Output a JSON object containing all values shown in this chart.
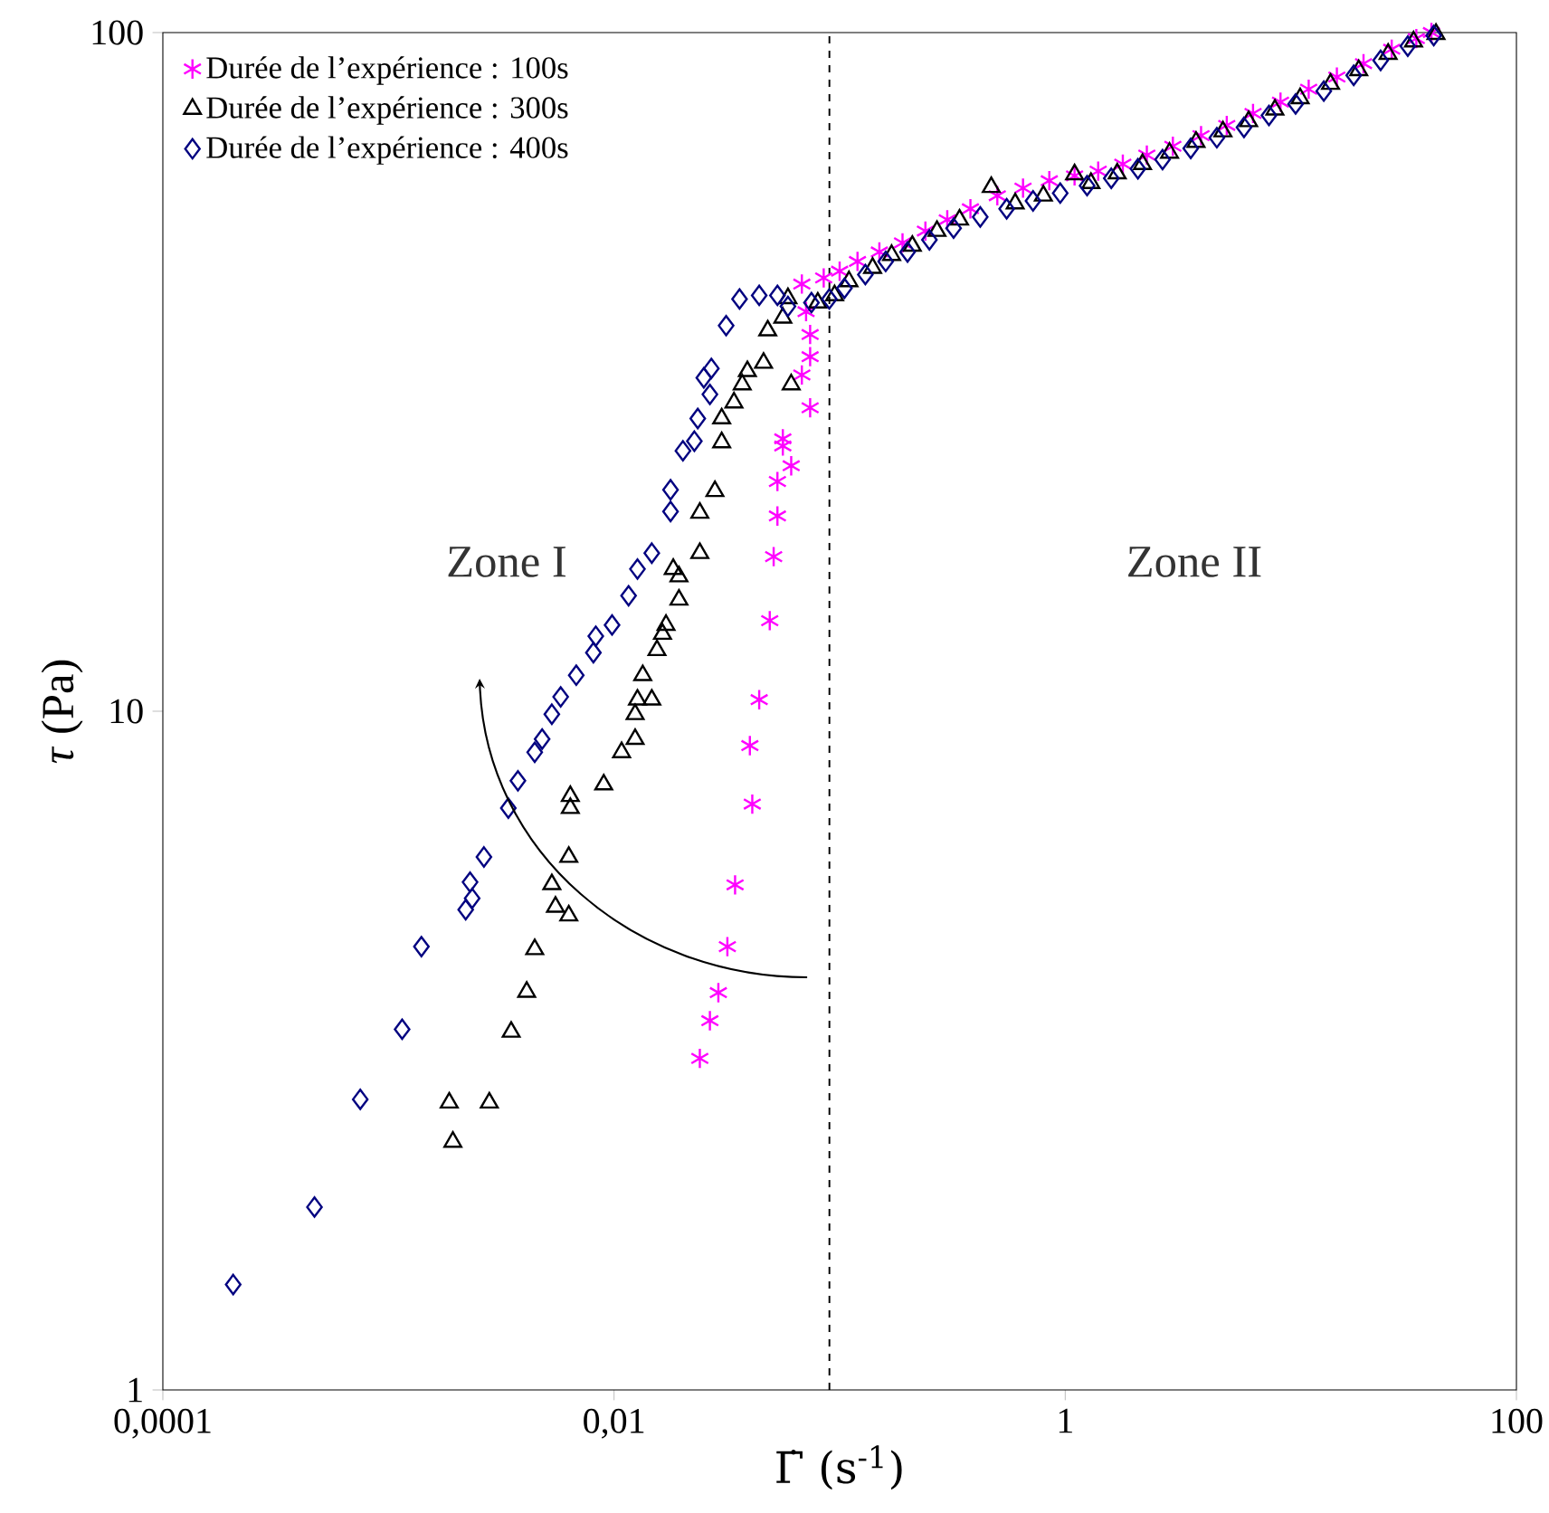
{
  "chart_data": {
    "type": "scatter",
    "xlabel": "Γ̇ (s$^{-1}$)",
    "ylabel": "*τ* (Pa)",
    "log": "xy",
    "xlim": [
      0.0001,
      100
    ],
    "ylim": [
      1,
      100
    ],
    "xticks": [
      {
        "value": 0.0001,
        "label": "0,0001"
      },
      {
        "value": 0.01,
        "label": "0,01"
      },
      1,
      100
    ],
    "yticks": [
      1,
      10,
      100
    ],
    "legend": "top left",
    "grid": false,
    "ref_lines": [
      {
        "axis": "x",
        "value": 0.09,
        "label": null,
        "color": "#000000",
        "line_style": "dashed"
      }
    ],
    "annotations": [
      "Zone I",
      "Zone II"
    ],
    "series": [
      {
        "name": "Durée de l’expérience : 100s",
        "color": "#ff00ff",
        "marker": "cross",
        "x": [
          0.024,
          0.0266,
          0.029,
          0.0318,
          0.0344,
          0.041,
          0.04,
          0.044,
          0.049,
          0.051,
          0.053,
          0.053,
          0.061,
          0.056,
          0.056,
          0.074,
          0.068,
          0.074,
          0.074,
          0.071,
          0.068,
          0.085,
          0.1,
          0.12,
          0.15,
          0.19,
          0.24,
          0.3,
          0.38,
          0.5,
          0.65,
          0.85,
          1.1,
          1.4,
          1.8,
          2.3,
          3,
          4,
          5.2,
          6.8,
          9,
          12,
          16,
          21,
          28,
          36,
          42
        ],
        "values": [
          3.08,
          3.5,
          3.85,
          4.5,
          5.55,
          7.3,
          8.9,
          10.4,
          13.6,
          16.9,
          19.4,
          21.8,
          23,
          24.6,
          25.2,
          28,
          31.3,
          33.3,
          35.9,
          38.8,
          42.6,
          43.5,
          44.5,
          46,
          47.5,
          49,
          51,
          53,
          55,
          57.5,
          59,
          60.5,
          61.5,
          62.5,
          64,
          66,
          68,
          70.5,
          73,
          76,
          79,
          82.5,
          86,
          90,
          94.5,
          98,
          100
        ]
      },
      {
        "name": "Durée de l’expérience : 300s",
        "color": "#000000",
        "marker": "triangle",
        "x": [
          0.00193,
          0.00186,
          0.0028,
          0.0035,
          0.0041,
          0.00445,
          0.0063,
          0.0055,
          0.0053,
          0.0063,
          0.0064,
          0.0064,
          0.009,
          0.0108,
          0.0124,
          0.0124,
          0.0127,
          0.0147,
          0.0134,
          0.0155,
          0.0164,
          0.017,
          0.0194,
          0.0194,
          0.0183,
          0.024,
          0.024,
          0.028,
          0.03,
          0.03,
          0.034,
          0.037,
          0.039,
          0.046,
          0.048,
          0.056,
          0.061,
          0.059,
          0.08,
          0.095,
          0.11,
          0.14,
          0.17,
          0.21,
          0.27,
          0.34,
          0.47,
          0.6,
          0.8,
          1.1,
          1.3,
          1.7,
          2.2,
          2.9,
          3.8,
          5,
          6.5,
          8.5,
          11,
          15,
          20,
          27,
          35,
          44
        ],
        "values": [
          2.32,
          2.65,
          2.65,
          3.37,
          3.86,
          4.46,
          5.0,
          5.15,
          5.56,
          6.1,
          7.2,
          7.5,
          7.8,
          8.7,
          9.1,
          9.9,
          10.4,
          10.4,
          11.3,
          12.3,
          13.0,
          13.4,
          14.6,
          15.8,
          16.2,
          17.1,
          19.6,
          21.1,
          24.9,
          27,
          28.5,
          30.3,
          31.7,
          32.6,
          36.4,
          38,
          30.3,
          40.6,
          40,
          41,
          43,
          45,
          47,
          48.5,
          51,
          53,
          59.2,
          56,
          57.5,
          61.8,
          60,
          62,
          64,
          66.5,
          69,
          71.5,
          74,
          77,
          80,
          84,
          88,
          93,
          97,
          99.5
        ]
      },
      {
        "name": "Durée de l’expérience : 400s",
        "color": "#000080",
        "marker": "diamond",
        "x": [
          0.000205,
          0.00047,
          0.00075,
          0.00115,
          0.0014,
          0.00265,
          0.0023,
          0.00235,
          0.0022,
          0.0034,
          0.00375,
          0.00445,
          0.0048,
          0.0053,
          0.0058,
          0.0068,
          0.0083,
          0.0098,
          0.0081,
          0.0116,
          0.0127,
          0.0147,
          0.0178,
          0.0178,
          0.0202,
          0.0227,
          0.0235,
          0.0266,
          0.025,
          0.027,
          0.0314,
          0.036,
          0.044,
          0.053,
          0.059,
          0.075,
          0.09,
          0.105,
          0.13,
          0.16,
          0.2,
          0.25,
          0.32,
          0.42,
          0.55,
          0.72,
          0.95,
          1.25,
          1.6,
          2.1,
          2.7,
          3.6,
          4.7,
          6.2,
          8,
          10.5,
          14,
          19,
          25,
          33,
          43
        ],
        "values": [
          1.43,
          1.86,
          2.68,
          3.4,
          4.5,
          6.1,
          5.6,
          5.3,
          5.1,
          7.2,
          7.9,
          8.7,
          9.1,
          9.9,
          10.5,
          11.3,
          12.9,
          13.4,
          12.2,
          14.8,
          16.2,
          17.1,
          19.7,
          21.2,
          24.2,
          25,
          27,
          29.3,
          31,
          32,
          37,
          40.5,
          41,
          41,
          39.5,
          40,
          40.5,
          42,
          44,
          46,
          47.5,
          49.5,
          51.5,
          53.5,
          55,
          56.5,
          58,
          59.5,
          61,
          63,
          65,
          67.5,
          70,
          72.5,
          75.5,
          78.5,
          82,
          86.5,
          91,
          95.5,
          99
        ]
      }
    ]
  }
}
